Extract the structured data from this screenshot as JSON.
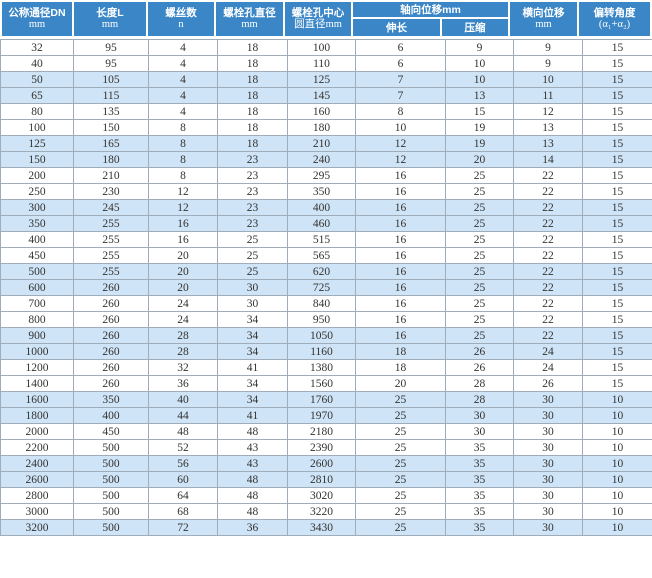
{
  "colors": {
    "header_bg": "#3a86c6",
    "header_text": "#ffffff",
    "row_alt_bg": "#cfe4f6",
    "row_bg": "#ffffff",
    "grid_border": "#9fadbb",
    "body_text": "#333333"
  },
  "table": {
    "headers": {
      "dn": {
        "line1": "公称通径DN",
        "line2": "mm"
      },
      "length": {
        "line1": "长度L",
        "line2": "mm"
      },
      "screw_count": {
        "line1": "螺丝数",
        "line2": "n"
      },
      "bolt_hole_diameter": {
        "line1": "螺栓孔直径",
        "line2": "mm"
      },
      "bolt_circle_diameter": {
        "line1": "螺栓孔中心",
        "line2": "圆直径mm"
      },
      "axial_displacement_group": {
        "line1": "轴向位移mm"
      },
      "axial_extension": {
        "line1": "伸长"
      },
      "axial_compression": {
        "line1": "压缩"
      },
      "lateral_displacement": {
        "line1": "横向位移",
        "line2": "mm"
      },
      "deflection_angle": {
        "line1": "偏转角度",
        "line2": "(α₁+α₂)"
      }
    },
    "rows": [
      [
        32,
        95,
        4,
        18,
        100,
        6,
        9,
        9,
        15
      ],
      [
        40,
        95,
        4,
        18,
        110,
        6,
        10,
        9,
        15
      ],
      [
        50,
        105,
        4,
        18,
        125,
        7,
        10,
        10,
        15
      ],
      [
        65,
        115,
        4,
        18,
        145,
        7,
        13,
        11,
        15
      ],
      [
        80,
        135,
        4,
        18,
        160,
        8,
        15,
        12,
        15
      ],
      [
        100,
        150,
        8,
        18,
        180,
        10,
        19,
        13,
        15
      ],
      [
        125,
        165,
        8,
        18,
        210,
        12,
        19,
        13,
        15
      ],
      [
        150,
        180,
        8,
        23,
        240,
        12,
        20,
        14,
        15
      ],
      [
        200,
        210,
        8,
        23,
        295,
        16,
        25,
        22,
        15
      ],
      [
        250,
        230,
        12,
        23,
        350,
        16,
        25,
        22,
        15
      ],
      [
        300,
        245,
        12,
        23,
        400,
        16,
        25,
        22,
        15
      ],
      [
        350,
        255,
        16,
        23,
        460,
        16,
        25,
        22,
        15
      ],
      [
        400,
        255,
        16,
        25,
        515,
        16,
        25,
        22,
        15
      ],
      [
        450,
        255,
        20,
        25,
        565,
        16,
        25,
        22,
        15
      ],
      [
        500,
        255,
        20,
        25,
        620,
        16,
        25,
        22,
        15
      ],
      [
        600,
        260,
        20,
        30,
        725,
        16,
        25,
        22,
        15
      ],
      [
        700,
        260,
        24,
        30,
        840,
        16,
        25,
        22,
        15
      ],
      [
        800,
        260,
        24,
        34,
        950,
        16,
        25,
        22,
        15
      ],
      [
        900,
        260,
        28,
        34,
        1050,
        16,
        25,
        22,
        15
      ],
      [
        1000,
        260,
        28,
        34,
        1160,
        18,
        26,
        24,
        15
      ],
      [
        1200,
        260,
        32,
        41,
        1380,
        18,
        26,
        24,
        15
      ],
      [
        1400,
        260,
        36,
        34,
        1560,
        20,
        28,
        26,
        15
      ],
      [
        1600,
        350,
        40,
        34,
        1760,
        25,
        28,
        30,
        10
      ],
      [
        1800,
        400,
        44,
        41,
        1970,
        25,
        30,
        30,
        10
      ],
      [
        2000,
        450,
        48,
        48,
        2180,
        25,
        30,
        30,
        10
      ],
      [
        2200,
        500,
        52,
        43,
        2390,
        25,
        35,
        30,
        10
      ],
      [
        2400,
        500,
        56,
        43,
        2600,
        25,
        35,
        30,
        10
      ],
      [
        2600,
        500,
        60,
        48,
        2810,
        25,
        35,
        30,
        10
      ],
      [
        2800,
        500,
        64,
        48,
        3020,
        25,
        35,
        30,
        10
      ],
      [
        3000,
        500,
        68,
        48,
        3220,
        25,
        35,
        30,
        10
      ],
      [
        3200,
        500,
        72,
        36,
        3430,
        25,
        35,
        30,
        10
      ]
    ]
  }
}
